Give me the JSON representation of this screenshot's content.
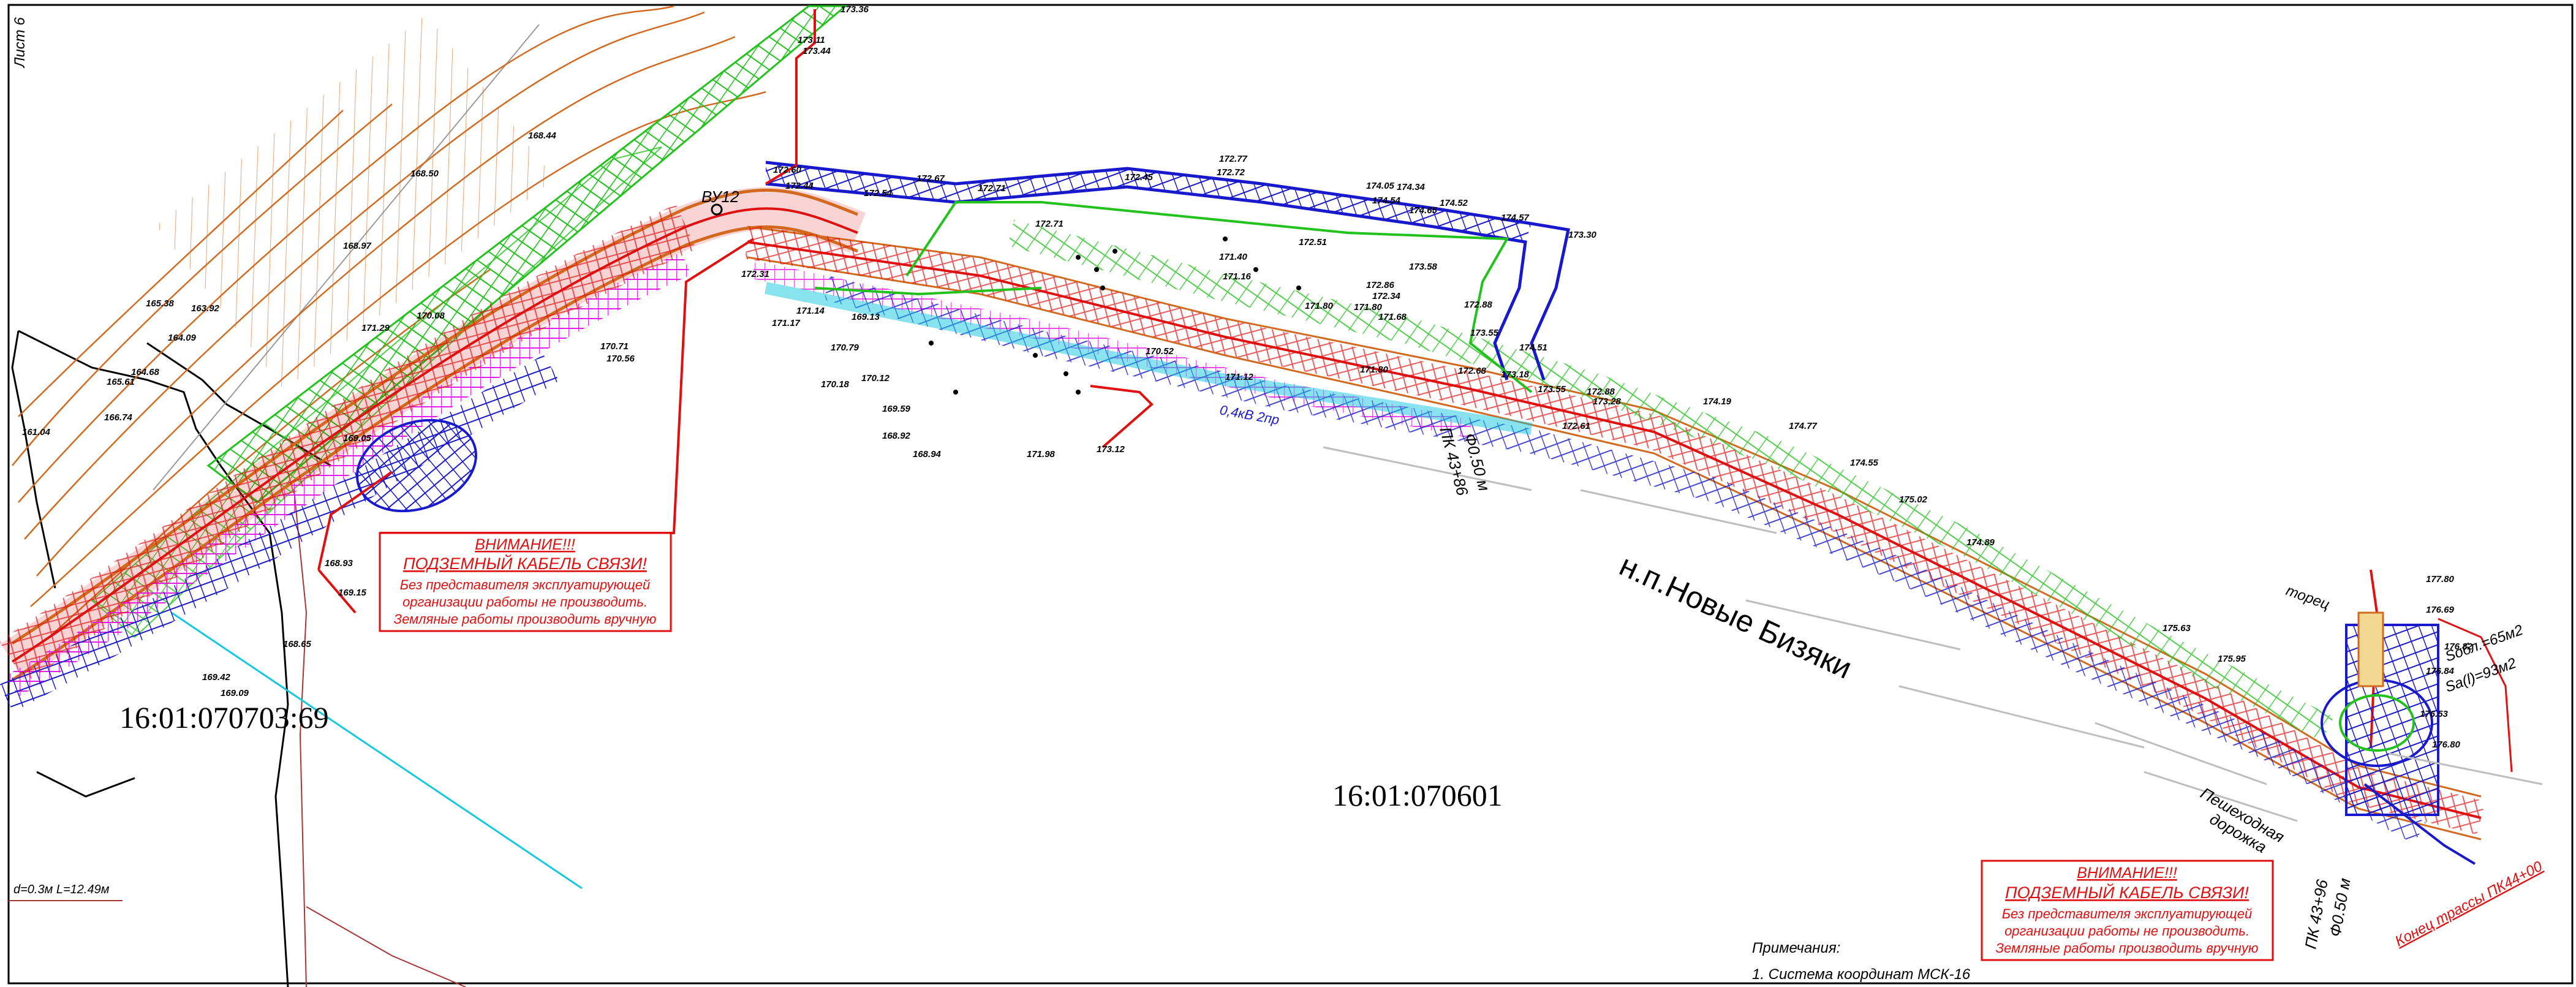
{
  "sheet": {
    "label": "Лист 6"
  },
  "settlement": {
    "name": "н.п.Новые Бизяки"
  },
  "parcels": {
    "left": "16:01:070703:69",
    "center": "16:01:070601"
  },
  "warning_left": {
    "title": "ВНИМАНИЕ!!!",
    "subtitle": "ПОДЗЕМНЫЙ КАБЕЛЬ СВЯЗИ!",
    "line1": "Без представителя эксплуатирующей",
    "line2": "организации работы не производить.",
    "line3": "Земляные работы производить вручную"
  },
  "warning_right": {
    "title": "ВНИМАНИЕ!!!",
    "subtitle": "ПОДЗЕМНЫЙ КАБЕЛЬ СВЯЗИ!",
    "line1": "Без представителя эксплуатирующей",
    "line2": "организации работы не производить.",
    "line3": "Земляные работы производить вручную"
  },
  "notes": {
    "heading": "Примечания:",
    "item1": "1. Система координат МСК-16"
  },
  "labels": {
    "vertex": "ВУ12",
    "pk_center": "ПК 43+86",
    "pipe_center": "Ф0.50 м",
    "pk_right": "ПК 43+96",
    "pipe_right": "Ф0.50 м",
    "end_of_route": "Конец трассы ПК44+00",
    "pedestrian_1": "Пешеходная",
    "pedestrian_2": "дорожка",
    "face_label": "торец",
    "area_1": "Sобл.=65м2",
    "area_2": "Sa(l)=93м2",
    "cable_label": "0,4кВ 2пр",
    "bottom_left_dim": "d=0.3м  L=12.49м"
  },
  "elevations": [
    "173.36",
    "173.11",
    "173.44",
    "172.60",
    "172.44",
    "172.67",
    "172.71",
    "172.54",
    "172.72",
    "172.77",
    "172.45",
    "174.05",
    "174.34",
    "174.54",
    "174.65",
    "174.52",
    "174.57",
    "173.30",
    "173.58",
    "172.88",
    "173.55",
    "174.51",
    "172.34",
    "171.80",
    "171.68",
    "172.71",
    "170.79",
    "170.18",
    "170.12",
    "169.59",
    "169.13",
    "168.94",
    "168.92",
    "171.98",
    "173.12",
    "171.14",
    "171.17",
    "172.31",
    "170.56",
    "170.71",
    "168.93",
    "169.15",
    "168.65",
    "169.42",
    "168.44",
    "169.09",
    "169.05",
    "170.08",
    "171.29",
    "171.80",
    "172.86",
    "171.40",
    "171.16",
    "172.51",
    "172.68",
    "173.18",
    "173.55",
    "172.88",
    "177.80",
    "176.69",
    "176.82",
    "176.84",
    "176.53",
    "176.80",
    "175.95",
    "175.63",
    "175.02",
    "174.89",
    "174.77",
    "174.55",
    "174.19",
    "173.28",
    "172.61",
    "171.80",
    "171.12",
    "170.52",
    "165.38",
    "163.92",
    "164.09",
    "164.68",
    "165.61",
    "166.74",
    "161.04",
    "168.50",
    "168.97"
  ],
  "colors": {
    "background": "#ffffff",
    "contour": "#d2691e",
    "road_green": "#22c21c",
    "hatch_blue": "#1818cc",
    "magenta": "#e020e0",
    "red": "#e01010",
    "cyan": "#14c8e0",
    "black": "#000000",
    "gray": "#b0b0b0"
  }
}
